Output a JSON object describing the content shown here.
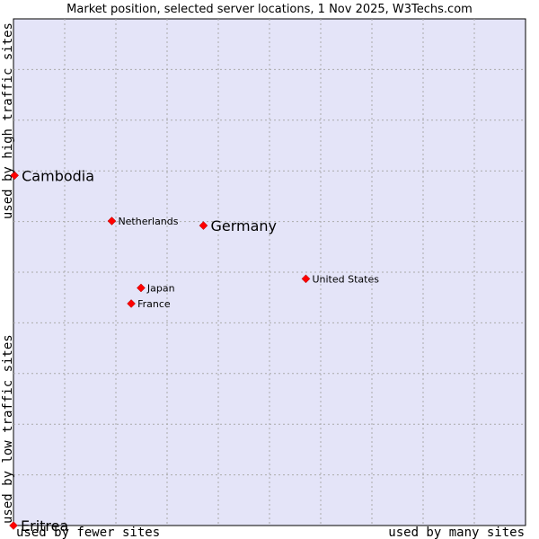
{
  "chart_data": {
    "type": "scatter",
    "title": "Market position, selected server locations, 1 Nov 2025, W3Techs.com",
    "xlabel_low": "used by fewer sites",
    "xlabel_high": "used by many sites",
    "ylabel_low": "used by low traffic sites",
    "ylabel_high": "used by high traffic sites",
    "xlim": [
      0,
      100
    ],
    "ylim": [
      0,
      100
    ],
    "grid": true,
    "point_color": "#ff0000",
    "plot_background": "#e4e4f8",
    "points": [
      {
        "name": "Cambodia",
        "x": 0.2,
        "y": 69.1,
        "emphasis": true
      },
      {
        "name": "Netherlands",
        "x": 19.2,
        "y": 60.1,
        "emphasis": false
      },
      {
        "name": "Germany",
        "x": 37.1,
        "y": 59.2,
        "emphasis": true
      },
      {
        "name": "United States",
        "x": 57.1,
        "y": 48.7,
        "emphasis": false
      },
      {
        "name": "Japan",
        "x": 24.9,
        "y": 46.9,
        "emphasis": false
      },
      {
        "name": "France",
        "x": 23.0,
        "y": 43.8,
        "emphasis": false
      },
      {
        "name": "Eritrea",
        "x": 0,
        "y": 0,
        "emphasis": true
      }
    ]
  }
}
